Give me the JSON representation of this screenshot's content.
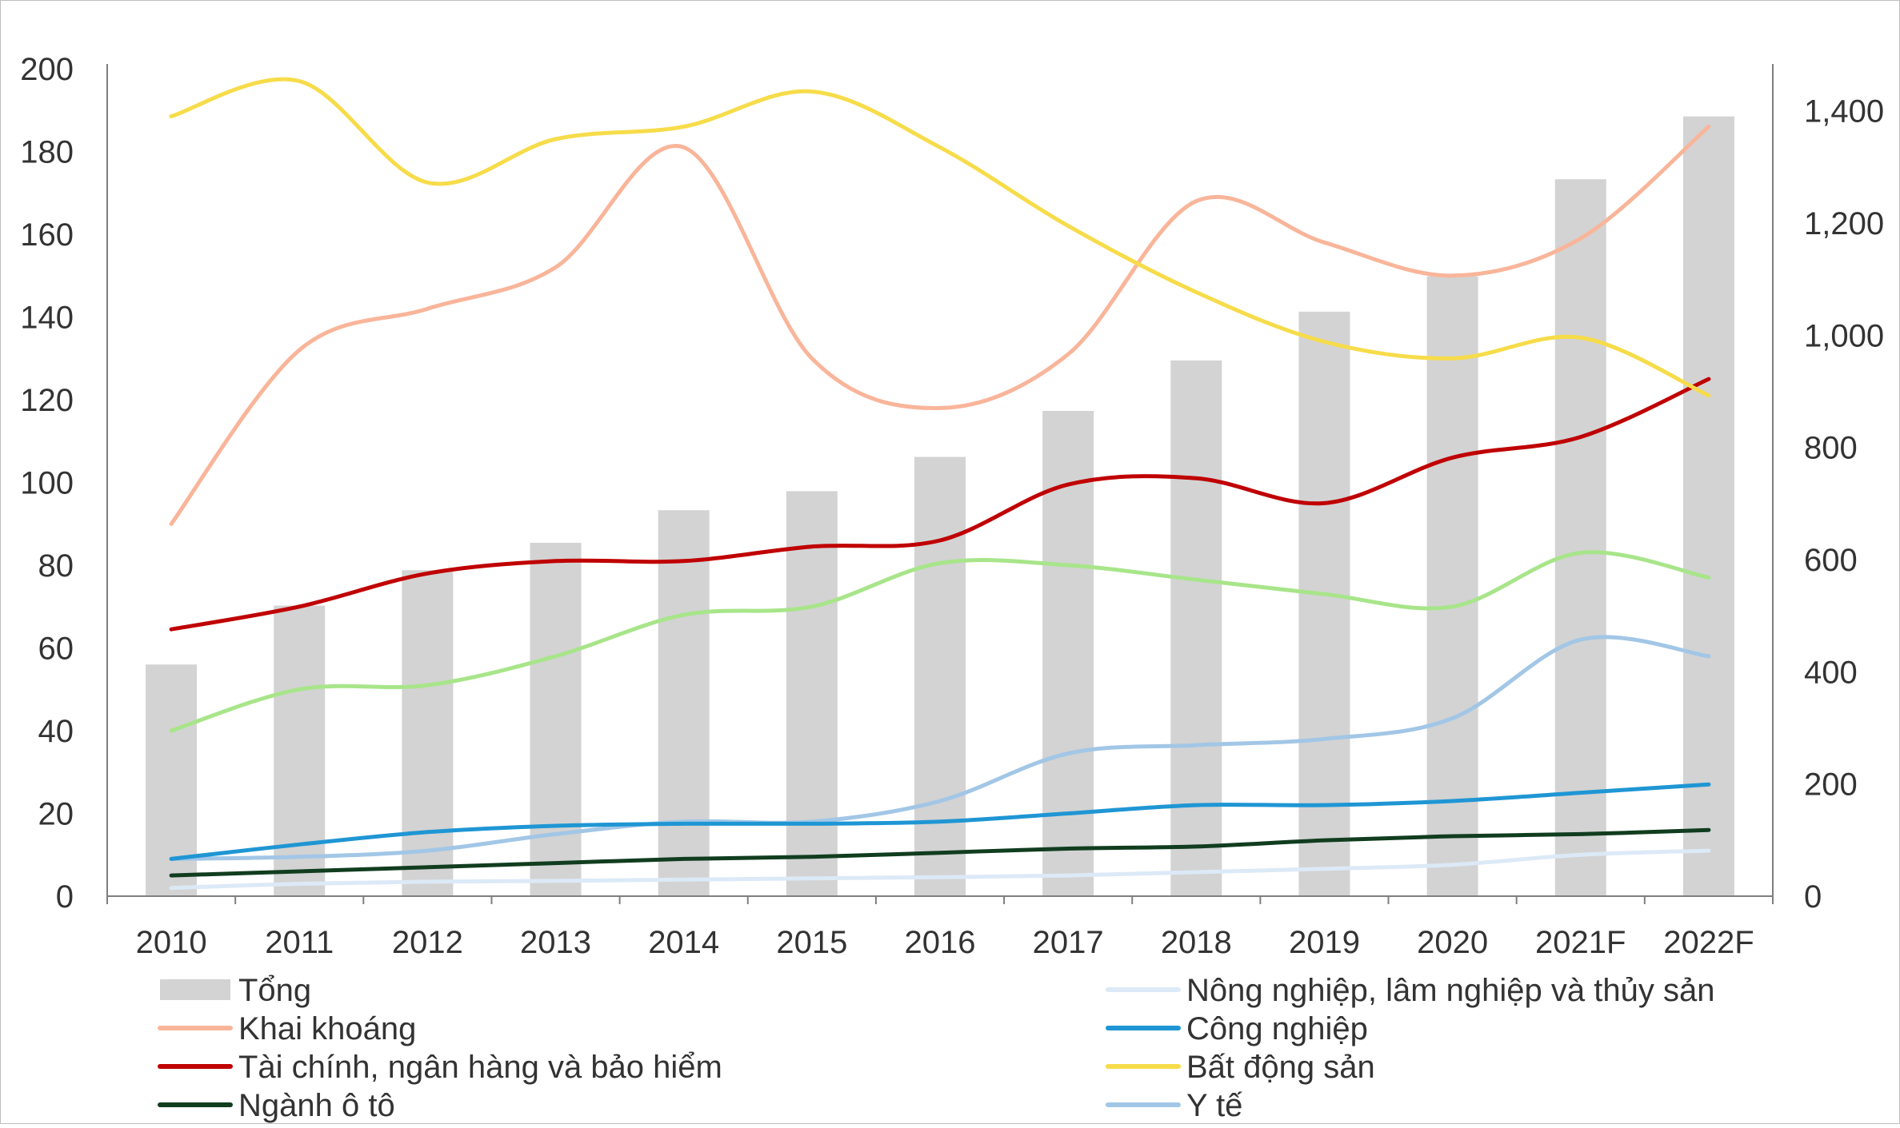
{
  "chart_data": {
    "type": "bar+line",
    "categories": [
      "2010",
      "2011",
      "2012",
      "2013",
      "2014",
      "2015",
      "2016",
      "2017",
      "2018",
      "2019",
      "2020",
      "2021F",
      "2022F"
    ],
    "left_axis": {
      "ylim": [
        0,
        200
      ],
      "ticks": [
        "0",
        "20",
        "40",
        "60",
        "80",
        "100",
        "120",
        "140",
        "160",
        "180",
        "200"
      ]
    },
    "right_axis": {
      "ylim": [
        0,
        1475
      ],
      "ticks": [
        "0",
        "200",
        "400",
        "600",
        "800",
        "1,000",
        "1,200",
        "1,400"
      ],
      "tick_values": [
        0,
        200,
        400,
        600,
        800,
        1000,
        1200,
        1400
      ]
    },
    "bar_series": {
      "name": "Tổng",
      "color": "#d3d3d3",
      "values": [
        413,
        518,
        581,
        630,
        688,
        722,
        783,
        865,
        955,
        1042,
        1105,
        1278,
        1390
      ]
    },
    "line_series": [
      {
        "name": "Nông nghiệp, lâm nghiệp và thủy sản",
        "color": "#dce9f7",
        "values": [
          2,
          3,
          3.5,
          3.7,
          4,
          4.3,
          4.6,
          5,
          5.8,
          6.6,
          7.6,
          10,
          11
        ]
      },
      {
        "name": "Khai khoáng",
        "color": "#f9b59a",
        "values": [
          90,
          132,
          142,
          152,
          181,
          130,
          118,
          131,
          168,
          158,
          150,
          159,
          186
        ]
      },
      {
        "name": "Công nghiệp",
        "color": "#1f96d4",
        "values": [
          9,
          12.5,
          15.5,
          17,
          17.5,
          17.5,
          18,
          20,
          22,
          22,
          23,
          25,
          27
        ]
      },
      {
        "name": "Tài chính, ngân hàng và bảo hiểm",
        "color": "#c00000",
        "values": [
          64.5,
          70,
          78,
          81,
          81,
          84.5,
          86,
          99.5,
          101,
          95,
          106,
          111,
          125
        ]
      },
      {
        "name": "Bất động sản",
        "color": "#f7dc4a",
        "values": [
          188.5,
          197,
          172.5,
          183,
          186,
          194.5,
          181,
          162,
          146,
          134,
          130,
          135,
          121
        ]
      },
      {
        "name": "Ngành ô tô",
        "color": "#113d1f",
        "values": [
          5,
          6,
          7,
          8,
          9,
          9.5,
          10.5,
          11.5,
          12,
          13.5,
          14.5,
          15,
          16
        ]
      },
      {
        "name": "Y tế",
        "color": "#a2c6e6",
        "values": [
          9,
          9.5,
          11,
          15,
          18,
          18,
          23,
          34.5,
          36.5,
          38,
          43,
          62,
          58
        ]
      },
      {
        "name": "",
        "color": "#a8e58a",
        "values": [
          40,
          50,
          51,
          58,
          68,
          70,
          80.5,
          80,
          76.5,
          73,
          70,
          83,
          77
        ]
      }
    ],
    "legend": {
      "placement": "bottom",
      "entries": [
        {
          "label": "Tổng",
          "kind": "bar",
          "color": "#d3d3d3"
        },
        {
          "label": "Nông nghiệp, lâm nghiệp và thủy sản",
          "kind": "line",
          "color": "#dce9f7"
        },
        {
          "label": "Khai khoáng",
          "kind": "line",
          "color": "#f9b59a"
        },
        {
          "label": "Công nghiệp",
          "kind": "line",
          "color": "#1f96d4"
        },
        {
          "label": "Tài chính, ngân hàng và bảo hiểm",
          "kind": "line",
          "color": "#c00000"
        },
        {
          "label": "Bất động sản",
          "kind": "line",
          "color": "#f7dc4a"
        },
        {
          "label": "Ngành ô tô",
          "kind": "line",
          "color": "#113d1f"
        },
        {
          "label": "Y tế",
          "kind": "line",
          "color": "#a2c6e6"
        }
      ]
    },
    "grid": false
  }
}
